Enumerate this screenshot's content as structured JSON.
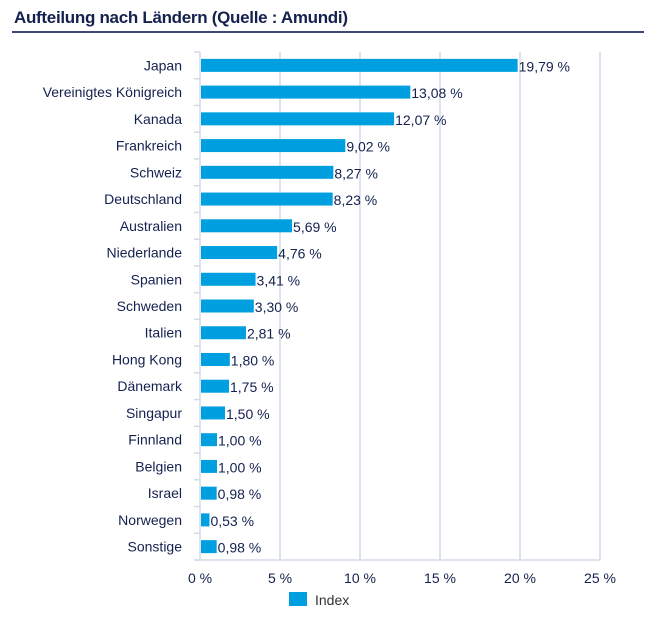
{
  "chart_data": {
    "type": "bar",
    "orientation": "horizontal",
    "title": "Aufteilung nach Ländern (Quelle : Amundi)",
    "categories": [
      "Japan",
      "Vereinigtes Königreich",
      "Kanada",
      "Frankreich",
      "Schweiz",
      "Deutschland",
      "Australien",
      "Niederlande",
      "Spanien",
      "Schweden",
      "Italien",
      "Hong Kong",
      "Dänemark",
      "Singapur",
      "Finnland",
      "Belgien",
      "Israel",
      "Norwegen",
      "Sonstige"
    ],
    "series": [
      {
        "name": "Index",
        "values": [
          19.79,
          13.08,
          12.07,
          9.02,
          8.27,
          8.23,
          5.69,
          4.76,
          3.41,
          3.3,
          2.81,
          1.8,
          1.75,
          1.5,
          1.0,
          1.0,
          0.98,
          0.53,
          0.98
        ]
      }
    ],
    "value_labels": [
      "19,79 %",
      "13,08 %",
      "12,07 %",
      "9,02 %",
      "8,27 %",
      "8,23 %",
      "5,69 %",
      "4,76 %",
      "3,41 %",
      "3,30 %",
      "2,81 %",
      "1,80 %",
      "1,75 %",
      "1,50 %",
      "1,00 %",
      "1,00 %",
      "0,98 %",
      "0,53 %",
      "0,98 %"
    ],
    "xlim": [
      0,
      25
    ],
    "xticks": [
      0,
      5,
      10,
      15,
      20,
      25
    ],
    "xtick_labels": [
      "0 %",
      "5 %",
      "10 %",
      "15 %",
      "20 %",
      "25 %"
    ],
    "xlabel": "",
    "ylabel": "",
    "grid": true,
    "legend_position": "bottom-center",
    "colors": {
      "bar": "#009fe0",
      "text": "#14214f",
      "grid": "#d3dbe8"
    }
  }
}
